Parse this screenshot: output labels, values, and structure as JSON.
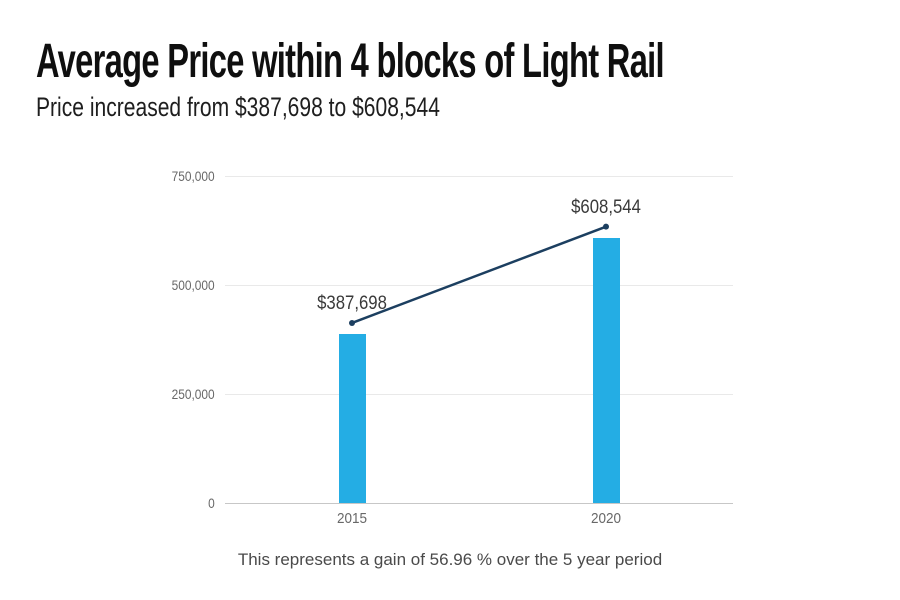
{
  "header": {
    "title": "Average Price within 4 blocks of Light Rail",
    "subtitle": "Price increased from $387,698 to $608,544"
  },
  "chart_data": {
    "type": "bar",
    "title": "Average Price within 4 blocks of Light Rail",
    "subtitle": "Price increased from $387,698 to $608,544",
    "categories": [
      "2015",
      "2020"
    ],
    "values": [
      387698,
      608544
    ],
    "value_labels": [
      "$387,698",
      "$608,544"
    ],
    "trend_line": {
      "type": "line",
      "connects": [
        "2015",
        "2020"
      ],
      "values": [
        387698,
        608544
      ],
      "end_markers": "dot"
    },
    "ylim": [
      0,
      750000
    ],
    "yticks": [
      0,
      250000,
      500000,
      750000
    ],
    "ytick_labels": [
      "0",
      "250,000",
      "500,000",
      "750,000"
    ],
    "xlabel": "",
    "ylabel": "",
    "grid": "horizontal-only",
    "legend": "none",
    "gain_percent": "56.96 %",
    "period_years": 5,
    "colors": {
      "bar": "#24ade4",
      "trend_line": "#1c3f60",
      "gridline": "#e9e9e9",
      "axis_line": "#c7c7c7",
      "tick_label": "#686868",
      "value_label": "#3a3a3a"
    }
  },
  "footer": {
    "note": "This represents a gain of 56.96 % over the 5 year period"
  }
}
